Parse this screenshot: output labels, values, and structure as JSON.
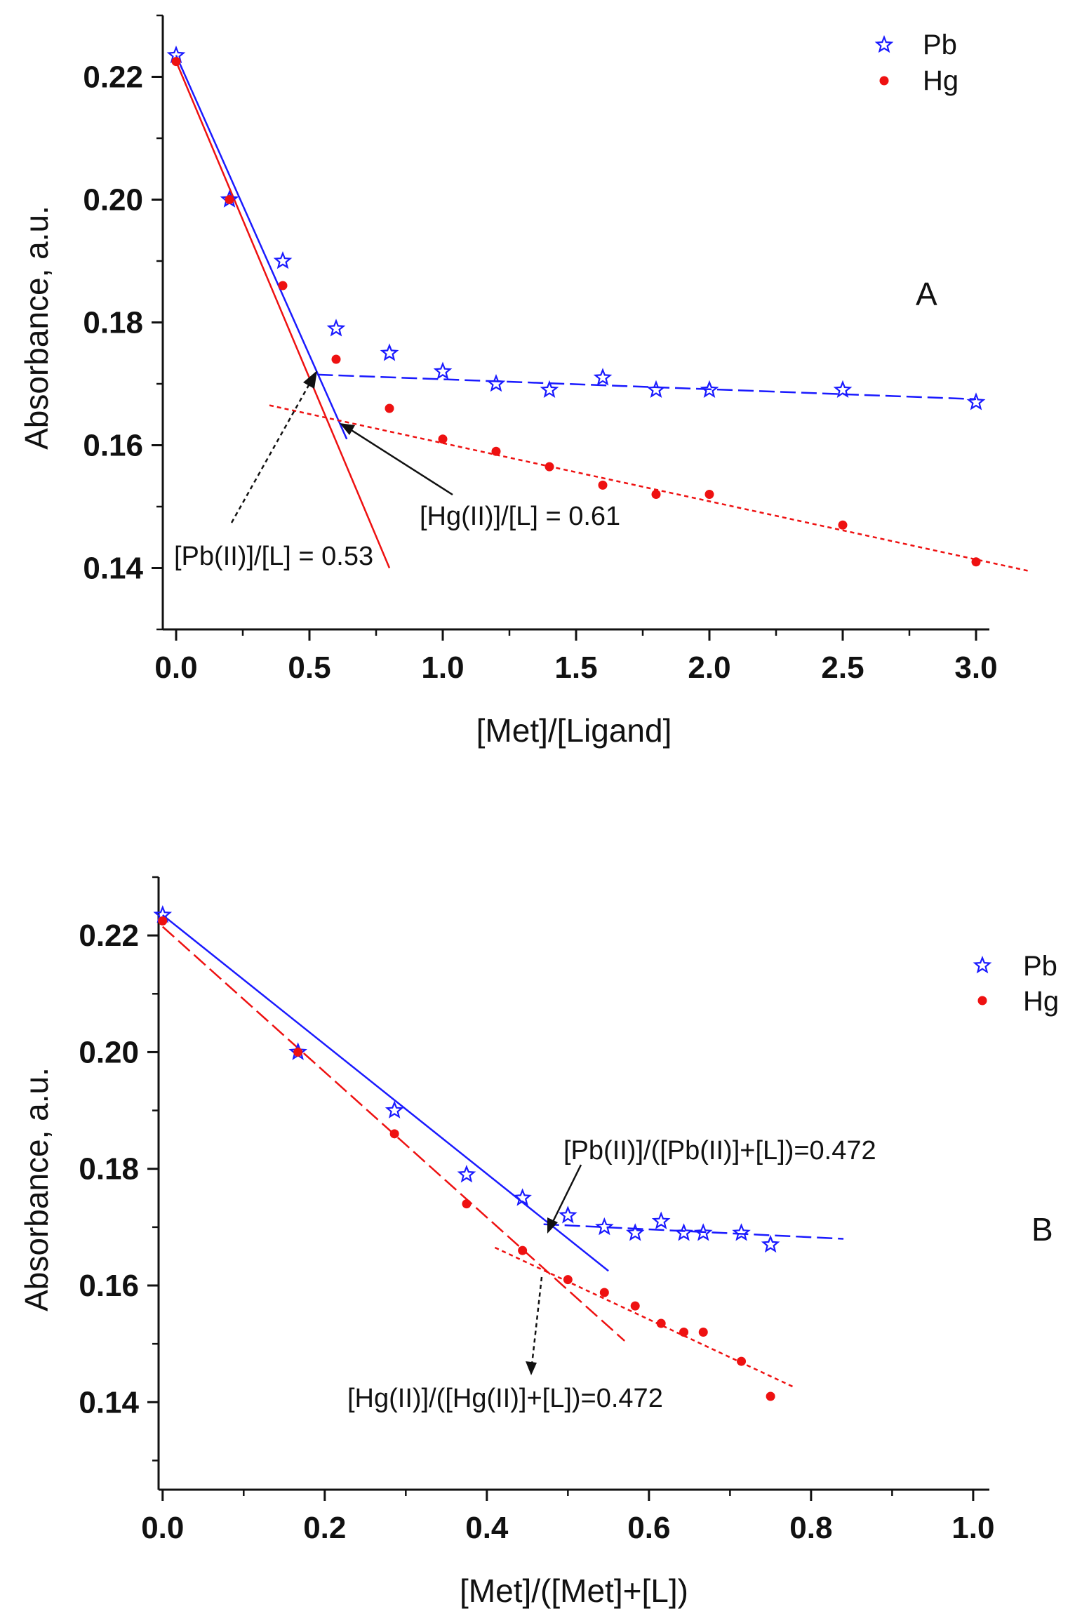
{
  "chart_data": [
    {
      "type": "scatter",
      "panel": "A",
      "xlabel": "[Met]/[Ligand]",
      "ylabel": "Absorbance, a.u.",
      "xlim": [
        -0.05,
        3.05
      ],
      "ylim": [
        0.13,
        0.23
      ],
      "xticks": [
        0.0,
        0.5,
        1.0,
        1.5,
        2.0,
        2.5,
        3.0
      ],
      "xtick_labels": [
        "0.0",
        "0.5",
        "1.0",
        "1.5",
        "2.0",
        "2.5",
        "3.0"
      ],
      "yticks": [
        0.14,
        0.16,
        0.18,
        0.2,
        0.22
      ],
      "ytick_labels": [
        "0.14",
        "0.16",
        "0.18",
        "0.20",
        "0.22"
      ],
      "series": [
        {
          "name": "Pb",
          "color": "#1a1aff",
          "marker": "star",
          "x": [
            0.0,
            0.2,
            0.4,
            0.6,
            0.8,
            1.0,
            1.2,
            1.4,
            1.6,
            1.8,
            2.0,
            2.5,
            3.0
          ],
          "y": [
            0.2235,
            0.2,
            0.19,
            0.179,
            0.175,
            0.172,
            0.17,
            0.169,
            0.171,
            0.169,
            0.169,
            0.169,
            0.167
          ]
        },
        {
          "name": "Hg",
          "color": "#ee1111",
          "marker": "dot",
          "x": [
            0.0,
            0.2,
            0.4,
            0.6,
            0.8,
            1.0,
            1.2,
            1.4,
            1.6,
            1.8,
            2.0,
            2.5,
            3.0
          ],
          "y": [
            0.2225,
            0.2,
            0.186,
            0.174,
            0.166,
            0.161,
            0.159,
            0.1565,
            0.1535,
            0.152,
            0.152,
            0.147,
            0.141
          ]
        }
      ],
      "fit_lines": [
        {
          "series": "Pb",
          "style": "solid",
          "x": [
            0.0,
            0.64
          ],
          "y": [
            0.2235,
            0.161
          ]
        },
        {
          "series": "Pb",
          "style": "dashed",
          "x": [
            0.53,
            3.0
          ],
          "y": [
            0.1715,
            0.1675
          ]
        },
        {
          "series": "Hg",
          "style": "solid",
          "x": [
            0.0,
            0.8
          ],
          "y": [
            0.2225,
            0.14
          ]
        },
        {
          "series": "Hg",
          "style": "dotted",
          "x": [
            0.35,
            3.2
          ],
          "y": [
            0.1665,
            0.1395
          ]
        }
      ],
      "annotations": [
        {
          "text": "[Pb(II)]/[L] = 0.53",
          "target": [
            0.53,
            0.1715
          ]
        },
        {
          "text": "[Hg(II)]/[L] = 0.61",
          "target": [
            0.62,
            0.164
          ]
        }
      ],
      "panel_label": "A",
      "legend": [
        "Pb",
        "Hg"
      ],
      "legend_position": "top-right"
    },
    {
      "type": "scatter",
      "panel": "B",
      "xlabel": "[Met]/([Met]+[L])",
      "ylabel": "Absorbance, a.u.",
      "xlim": [
        -0.005,
        1.02
      ],
      "ylim": [
        0.125,
        0.23
      ],
      "xticks": [
        0.0,
        0.2,
        0.4,
        0.6,
        0.8,
        1.0
      ],
      "xtick_labels": [
        "0.0",
        "0.2",
        "0.4",
        "0.6",
        "0.8",
        "1.0"
      ],
      "yticks": [
        0.14,
        0.16,
        0.18,
        0.2,
        0.22
      ],
      "ytick_labels": [
        "0.14",
        "0.16",
        "0.18",
        "0.20",
        "0.22"
      ],
      "series": [
        {
          "name": "Pb",
          "color": "#1a1aff",
          "marker": "star",
          "x": [
            0.0,
            0.167,
            0.286,
            0.375,
            0.444,
            0.5,
            0.545,
            0.583,
            0.615,
            0.643,
            0.667,
            0.714,
            0.75
          ],
          "y": [
            0.2235,
            0.2,
            0.19,
            0.179,
            0.175,
            0.172,
            0.17,
            0.169,
            0.171,
            0.169,
            0.169,
            0.169,
            0.167
          ]
        },
        {
          "name": "Hg",
          "color": "#ee1111",
          "marker": "dot",
          "x": [
            0.0,
            0.167,
            0.286,
            0.375,
            0.444,
            0.5,
            0.545,
            0.583,
            0.615,
            0.643,
            0.667,
            0.714,
            0.75
          ],
          "y": [
            0.2225,
            0.2,
            0.186,
            0.174,
            0.166,
            0.161,
            0.1588,
            0.1565,
            0.1535,
            0.152,
            0.152,
            0.147,
            0.141
          ]
        }
      ],
      "fit_lines": [
        {
          "series": "Pb",
          "style": "solid",
          "x": [
            0.0,
            0.55
          ],
          "y": [
            0.2235,
            0.1625
          ]
        },
        {
          "series": "Pb",
          "style": "dashed",
          "x": [
            0.47,
            0.84
          ],
          "y": [
            0.1705,
            0.168
          ]
        },
        {
          "series": "Hg",
          "style": "dashed",
          "x": [
            0.0,
            0.57
          ],
          "y": [
            0.2215,
            0.1505
          ]
        },
        {
          "series": "Hg",
          "style": "dotted",
          "x": [
            0.41,
            0.78
          ],
          "y": [
            0.1665,
            0.1425
          ]
        }
      ],
      "annotations": [
        {
          "text": "[Pb(II)]/([Pb(II)]+[L])=0.472",
          "target": [
            0.472,
            0.1705
          ]
        },
        {
          "text": "[Hg(II)]/([Hg(II)]+[L])=0.472",
          "target": [
            0.455,
            0.1635
          ]
        }
      ],
      "panel_label": "B",
      "legend": [
        "Pb",
        "Hg"
      ],
      "legend_position": "right"
    }
  ]
}
